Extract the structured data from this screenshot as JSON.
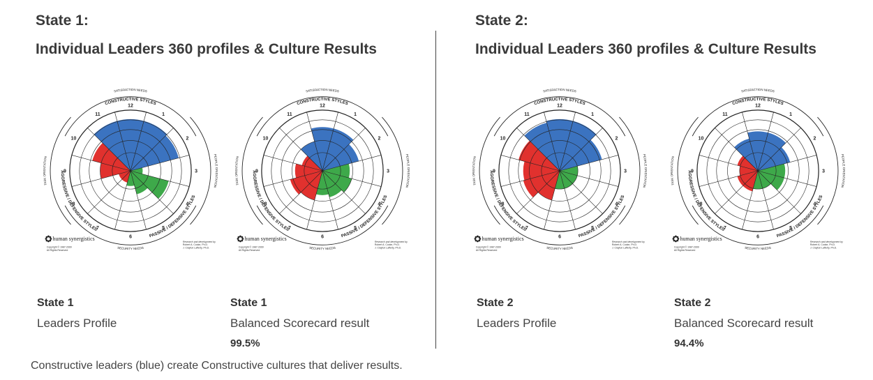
{
  "panels": [
    {
      "state": "State 1:",
      "title": "Individual Leaders 360 profiles & Culture Results"
    },
    {
      "state": "State 2:",
      "title": "Individual Leaders 360 profiles & Culture Results"
    }
  ],
  "captions": [
    {
      "state": "State 1",
      "subtitle": "Leaders Profile",
      "result": ""
    },
    {
      "state": "State 1",
      "subtitle": "Balanced Scorecard result",
      "result": "99.5%"
    },
    {
      "state": "State 2",
      "subtitle": "Leaders Profile",
      "result": ""
    },
    {
      "state": "State 2",
      "subtitle": "Balanced Scorecard result",
      "result": "94.4%"
    }
  ],
  "footnote": "Constructive leaders (blue) create Constructive cultures that deliver results.",
  "circumplex_labels": {
    "satisfaction": "SATISFACTION NEEDS",
    "constructive": "CONSTRUCTIVE STYLES",
    "people": "PEOPLE ORIENTATION",
    "passive": "PASSIVE / DEFENSIVE STYLES",
    "security": "SECURITY NEEDS",
    "aggressive": "AGGRESSIVE / DEFENSIVE STYLES",
    "task": "TASK ORIENTATION",
    "logo": "human synergistics",
    "copyright": "Copyright © 1987-2009",
    "rights": "All Rights Reserved",
    "research1": "Research and development by",
    "research2": "Robert A. Cooke, Ph.D.",
    "research3": "J. Clayton Lafferty, Ph.D."
  },
  "chart_data": [
    {
      "type": "circumplex",
      "name": "State 1 Leaders Profile",
      "categories": [
        "1",
        "2",
        "3",
        "4",
        "5",
        "6",
        "7",
        "8",
        "9",
        "10",
        "11",
        "12"
      ],
      "values": [
        0.85,
        0.82,
        0.2,
        0.65,
        0.4,
        0.25,
        0.2,
        0.2,
        0.5,
        0.65,
        0.85,
        0.85
      ],
      "colors": [
        "#3b73c0",
        "#3b73c0",
        "#3ea94a",
        "#3ea94a",
        "#3ea94a",
        "#3ea94a",
        "#e1312e",
        "#e1312e",
        "#e1312e",
        "#e1312e",
        "#3b73c0",
        "#3b73c0"
      ]
    },
    {
      "type": "circumplex",
      "name": "State 1 Balanced Scorecard result",
      "categories": [
        "1",
        "2",
        "3",
        "4",
        "5",
        "6",
        "7",
        "8",
        "9",
        "10",
        "11",
        "12"
      ],
      "values": [
        0.72,
        0.62,
        0.45,
        0.5,
        0.45,
        0.4,
        0.5,
        0.55,
        0.45,
        0.35,
        0.5,
        0.72
      ],
      "colors": [
        "#3b73c0",
        "#3b73c0",
        "#3ea94a",
        "#3ea94a",
        "#3ea94a",
        "#3ea94a",
        "#e1312e",
        "#e1312e",
        "#e1312e",
        "#e1312e",
        "#3b73c0",
        "#3b73c0"
      ]
    },
    {
      "type": "circumplex",
      "name": "State 2 Leaders Profile",
      "categories": [
        "1",
        "2",
        "3",
        "4",
        "5",
        "6",
        "7",
        "8",
        "9",
        "10",
        "11",
        "12"
      ],
      "values": [
        0.85,
        0.72,
        0.3,
        0.3,
        0.3,
        0.3,
        0.5,
        0.62,
        0.6,
        0.7,
        0.82,
        0.85
      ],
      "colors": [
        "#3b73c0",
        "#3b73c0",
        "#3ea94a",
        "#3ea94a",
        "#3ea94a",
        "#3ea94a",
        "#e1312e",
        "#e1312e",
        "#e1312e",
        "#e1312e",
        "#3b73c0",
        "#3b73c0"
      ]
    },
    {
      "type": "circumplex",
      "name": "State 2 Balanced Scorecard result",
      "categories": [
        "1",
        "2",
        "3",
        "4",
        "5",
        "6",
        "7",
        "8",
        "9",
        "10",
        "11",
        "12"
      ],
      "values": [
        0.65,
        0.55,
        0.45,
        0.45,
        0.3,
        0.3,
        0.35,
        0.35,
        0.3,
        0.35,
        0.55,
        0.65
      ],
      "colors": [
        "#3b73c0",
        "#3b73c0",
        "#3ea94a",
        "#3ea94a",
        "#3ea94a",
        "#3ea94a",
        "#e1312e",
        "#e1312e",
        "#e1312e",
        "#e1312e",
        "#3b73c0",
        "#3b73c0"
      ]
    }
  ]
}
